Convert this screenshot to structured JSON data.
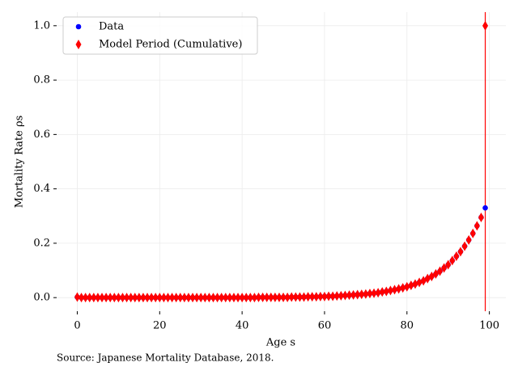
{
  "chart_data": {
    "type": "scatter",
    "x_label": "Age s",
    "y_label": "Mortality Rate ρs",
    "note": "Source: Japanese  Mortality  Database, 2018.",
    "x": [
      0,
      1,
      2,
      3,
      4,
      5,
      6,
      7,
      8,
      9,
      10,
      11,
      12,
      13,
      14,
      15,
      16,
      17,
      18,
      19,
      20,
      21,
      22,
      23,
      24,
      25,
      26,
      27,
      28,
      29,
      30,
      31,
      32,
      33,
      34,
      35,
      36,
      37,
      38,
      39,
      40,
      41,
      42,
      43,
      44,
      45,
      46,
      47,
      48,
      49,
      50,
      51,
      52,
      53,
      54,
      55,
      56,
      57,
      58,
      59,
      60,
      61,
      62,
      63,
      64,
      65,
      66,
      67,
      68,
      69,
      70,
      71,
      72,
      73,
      74,
      75,
      76,
      77,
      78,
      79,
      80,
      81,
      82,
      83,
      84,
      85,
      86,
      87,
      88,
      89,
      90,
      91,
      92,
      93,
      94,
      95,
      96,
      97,
      98,
      99
    ],
    "series": [
      {
        "name": "Data",
        "color": "#0000ff",
        "marker": "circle",
        "values": [
          0.002,
          0,
          0,
          0,
          0,
          0,
          0,
          0,
          0,
          0,
          0,
          0,
          0,
          0,
          0,
          0,
          0,
          0,
          0,
          0,
          0,
          0,
          0,
          0,
          0,
          0,
          0,
          0,
          0,
          0,
          0,
          0,
          0,
          0,
          0,
          0,
          0,
          0,
          0,
          0,
          0,
          0,
          0,
          0,
          0.001,
          0.001,
          0.001,
          0.001,
          0.001,
          0.001,
          0.001,
          0.001,
          0.002,
          0.002,
          0.002,
          0.002,
          0.003,
          0.003,
          0.003,
          0.004,
          0.004,
          0.005,
          0.005,
          0.006,
          0.007,
          0.008,
          0.009,
          0.01,
          0.011,
          0.012,
          0.013,
          0.015,
          0.016,
          0.018,
          0.021,
          0.023,
          0.026,
          0.029,
          0.032,
          0.036,
          0.04,
          0.045,
          0.05,
          0.056,
          0.062,
          0.07,
          0.078,
          0.087,
          0.097,
          0.109,
          0.121,
          0.136,
          0.152,
          0.169,
          0.189,
          0.212,
          0.236,
          0.264,
          0.295,
          0.33
        ]
      },
      {
        "name": "Model Period (Cumulative)",
        "color": "#ff0000",
        "marker": "diamond",
        "values": [
          0.002,
          0,
          0,
          0,
          0,
          0,
          0,
          0,
          0,
          0,
          0,
          0,
          0,
          0,
          0,
          0,
          0,
          0,
          0,
          0,
          0,
          0,
          0,
          0,
          0,
          0,
          0,
          0,
          0,
          0,
          0,
          0,
          0,
          0,
          0,
          0,
          0,
          0,
          0,
          0,
          0,
          0,
          0,
          0,
          0.001,
          0.001,
          0.001,
          0.001,
          0.001,
          0.001,
          0.001,
          0.001,
          0.002,
          0.002,
          0.002,
          0.002,
          0.003,
          0.003,
          0.003,
          0.004,
          0.004,
          0.005,
          0.005,
          0.006,
          0.007,
          0.008,
          0.009,
          0.01,
          0.011,
          0.012,
          0.013,
          0.015,
          0.016,
          0.018,
          0.021,
          0.023,
          0.026,
          0.029,
          0.032,
          0.036,
          0.04,
          0.045,
          0.05,
          0.056,
          0.062,
          0.07,
          0.078,
          0.087,
          0.097,
          0.109,
          0.121,
          0.136,
          0.152,
          0.169,
          0.189,
          0.212,
          0.236,
          0.264,
          0.295,
          1.0
        ]
      }
    ],
    "vline": {
      "x": 99,
      "color": "#ff0000"
    },
    "xlim": [
      -5,
      104
    ],
    "ylim": [
      -0.05,
      1.05
    ],
    "xticks": [
      0,
      20,
      40,
      60,
      80,
      100
    ],
    "yticks": [
      {
        "value": 0,
        "label": "0.0"
      },
      {
        "value": 0.2,
        "label": "0.2"
      },
      {
        "value": 0.4,
        "label": "0.4"
      },
      {
        "value": 0.6,
        "label": "0.6"
      },
      {
        "value": 0.8,
        "label": "0.8"
      },
      {
        "value": 1.0,
        "label": "1.0"
      }
    ],
    "grid": true,
    "legend": "upper left"
  }
}
